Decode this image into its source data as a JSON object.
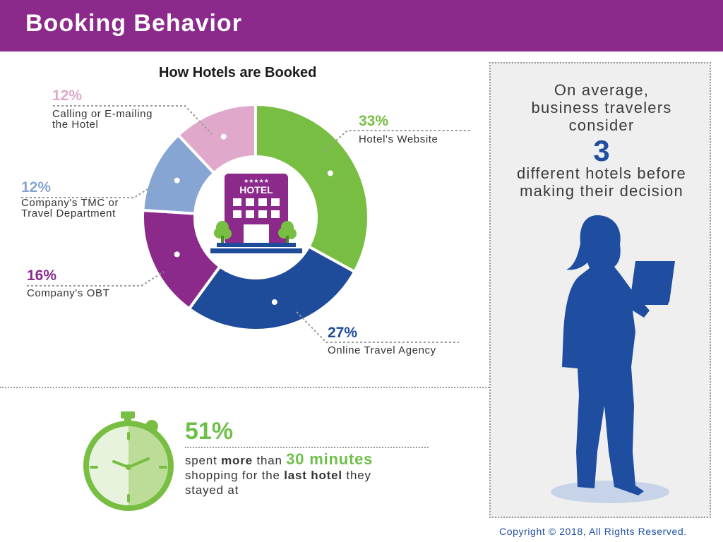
{
  "header": {
    "title": "Booking Behavior"
  },
  "colors": {
    "header_bg": "#8b2a8b",
    "website": "#78be43",
    "ota": "#1f4b9b",
    "obt": "#8b2a8b",
    "tmc": "#87a5d3",
    "calling": "#e0a9cc",
    "accent_blue": "#1f4ea1",
    "accent_green": "#6fbf4b"
  },
  "chart_data": {
    "type": "pie",
    "title": "How Hotels are Booked",
    "slices": [
      {
        "label": "Hotel's Website",
        "value": 33,
        "pct_text": "33%",
        "color": "#78be43"
      },
      {
        "label": "Online Travel Agency",
        "value": 27,
        "pct_text": "27%",
        "color": "#1f4b9b"
      },
      {
        "label": "Company's OBT",
        "value": 16,
        "pct_text": "16%",
        "color": "#8b2a8b"
      },
      {
        "label": "Company's TMC or Travel Department",
        "value": 12,
        "pct_text": "12%",
        "color": "#87a5d3"
      },
      {
        "label": "Calling or E-mailing the Hotel",
        "value": 12,
        "pct_text": "12%",
        "color": "#e0a9cc"
      }
    ],
    "center_icon": "hotel-building-icon",
    "center_sign": "HOTEL",
    "center_stars": "★★★★★"
  },
  "labels": {
    "calling_line1": "Calling or E-mailing",
    "calling_line2": "the Hotel",
    "tmc_line1": "Company's TMC or",
    "tmc_line2": "Travel Department",
    "obt_line1": "Company's OBT",
    "website_line1": "Hotel's Website",
    "ota_line1": "Online Travel Agency"
  },
  "side_panel": {
    "line1": "On average,",
    "line2": "business travelers",
    "line3": "consider",
    "number": "3",
    "line4": "different hotels before",
    "line5": "making their decision",
    "figure_icon": "businesswoman-laptop-silhouette-icon"
  },
  "stat": {
    "percent": "51%",
    "spent": "spent",
    "more": "more",
    "than": "than",
    "minutes": "30 minutes",
    "shopping": "shopping for the",
    "last_hotel": "last hotel",
    "they": "they",
    "stayed": "stayed at",
    "icon": "stopwatch-icon"
  },
  "footer": {
    "copyright": "Copyright © 2018, All Rights Reserved."
  }
}
